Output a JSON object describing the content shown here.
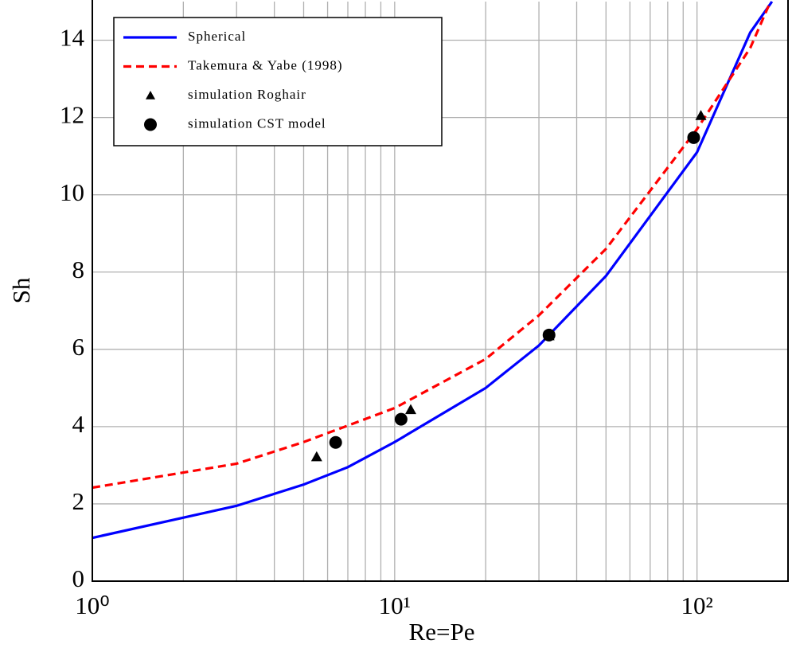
{
  "chart_data": {
    "type": "line",
    "x_label": "Re=Pe",
    "y_label": "Sh",
    "xscale": "log",
    "xlim": [
      1,
      200
    ],
    "ylim": [
      0,
      15
    ],
    "xticks": [
      {
        "value": 1,
        "label": "10⁰"
      },
      {
        "value": 10,
        "label": "10¹"
      },
      {
        "value": 100,
        "label": "10²"
      }
    ],
    "x_minor_ticks": [
      2,
      3,
      4,
      5,
      6,
      7,
      8,
      9,
      20,
      30,
      40,
      50,
      60,
      70,
      80,
      90
    ],
    "yticks": [
      0,
      2,
      4,
      6,
      8,
      10,
      12,
      14
    ],
    "grid": true,
    "legend": "upper left",
    "series": [
      {
        "name": "Spherical",
        "color": "#0000ff",
        "style": "solid",
        "x": [
          1,
          3,
          5,
          7,
          10,
          20,
          30,
          50,
          100,
          150,
          177
        ],
        "values": [
          1.12,
          1.95,
          2.5,
          2.95,
          3.6,
          5.0,
          6.1,
          7.9,
          11.1,
          14.2,
          15.0
        ]
      },
      {
        "name": "Takemura & Yabe (1998)",
        "color": "#ff0000",
        "style": "dashed",
        "x": [
          1,
          3,
          5,
          10,
          20,
          30,
          50,
          100,
          150,
          175
        ],
        "values": [
          2.42,
          3.04,
          3.6,
          4.48,
          5.75,
          6.88,
          8.6,
          11.7,
          13.8,
          15.0
        ]
      },
      {
        "name": "simulation Roghair",
        "color": "#000000",
        "style": "triangle",
        "x": [
          5.52,
          11.3,
          32.4,
          103
        ],
        "values": [
          3.22,
          4.44,
          6.35,
          12.05
        ]
      },
      {
        "name": "simulation CST model",
        "color": "#000000",
        "style": "circle",
        "x": [
          6.38,
          10.5,
          32.4,
          97.5
        ],
        "values": [
          3.59,
          4.19,
          6.37,
          11.48
        ]
      }
    ]
  }
}
